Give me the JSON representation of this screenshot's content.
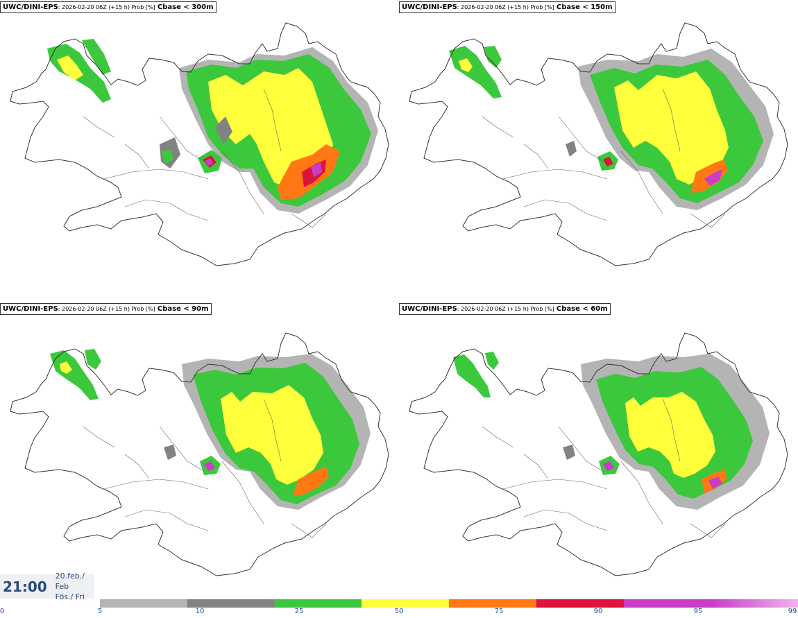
{
  "panels": [
    {
      "model": "UWC/DINI-EPS",
      "run": ": 2026-02-20 06Z (+15 h) Prob [%]",
      "param": "Cbase < 300m"
    },
    {
      "model": "UWC/DINI-EPS",
      "run": ": 2026-02-20 06Z (+15 h) Prob [%]",
      "param": "Cbase < 150m"
    },
    {
      "model": "UWC/DINI-EPS",
      "run": ": 2026-02-20 06Z (+15 h) Prob [%]",
      "param": "Cbase < 90m"
    },
    {
      "model": "UWC/DINI-EPS",
      "run": ": 2026-02-20 06Z (+15 h) Prob [%]",
      "param": "Cbase < 60m"
    }
  ],
  "valid_time": {
    "time": "21:00",
    "date_line": "20.feb./ Feb",
    "day_line": "Fös./ Fri"
  },
  "colorbar": {
    "ticks": [
      "0",
      "5",
      "10",
      "25",
      "50",
      "75",
      "90",
      "95",
      "99"
    ],
    "colors": [
      "#b4b4b4",
      "#828282",
      "#3cc83c",
      "#ffff3c",
      "#ff7814",
      "#dc143c",
      "#c83cc8",
      "#f0b4f0"
    ]
  }
}
